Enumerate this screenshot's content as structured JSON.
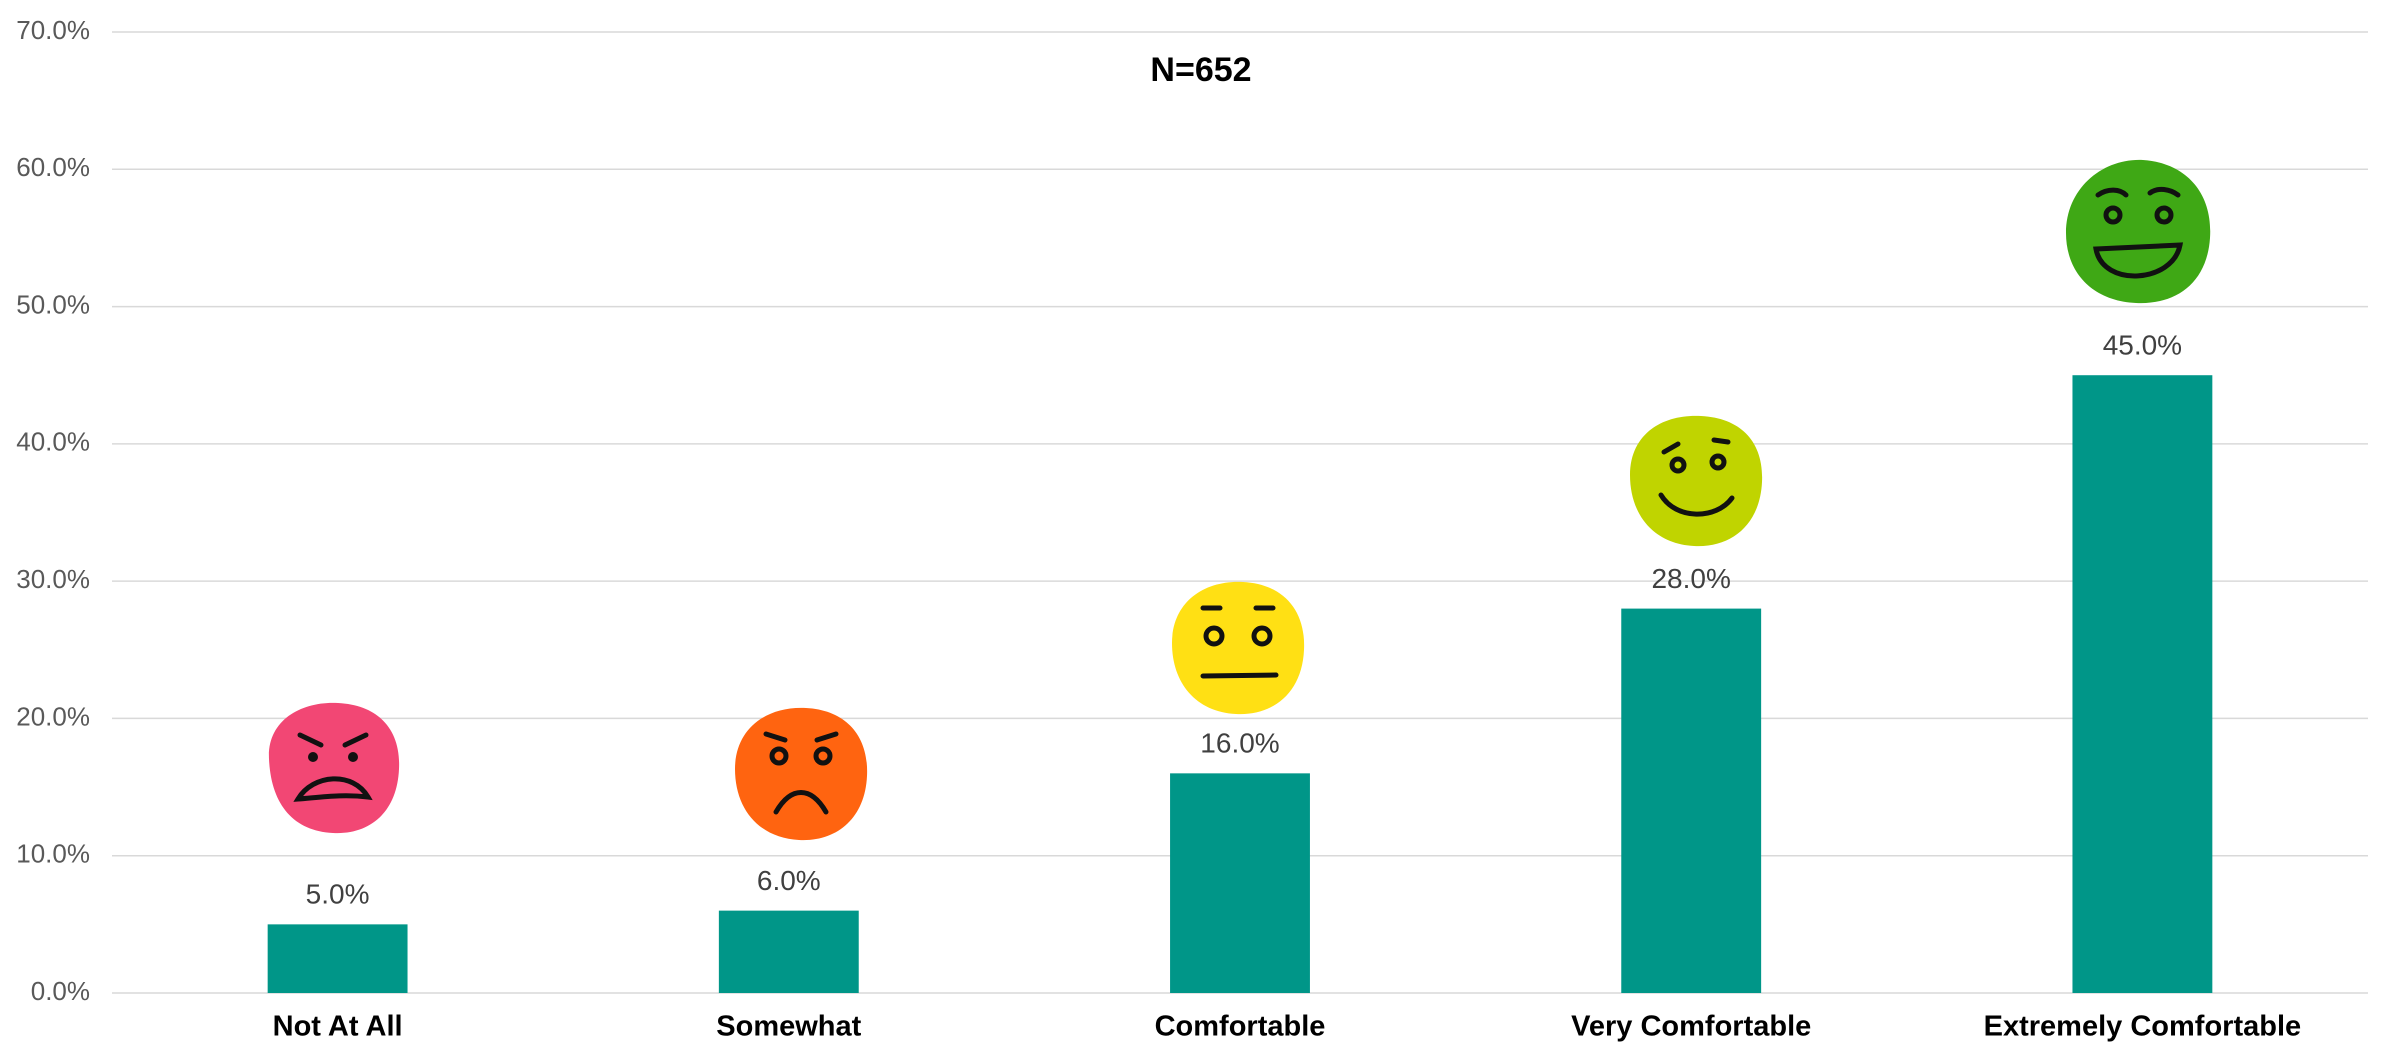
{
  "chart_data": {
    "type": "bar",
    "title": "N=652",
    "categories": [
      "Not At All",
      "Somewhat",
      "Comfortable",
      "Very Comfortable",
      "Extremely Comfortable"
    ],
    "values": [
      5.0,
      6.0,
      16.0,
      28.0,
      45.0
    ],
    "value_labels": [
      "5.0%",
      "6.0%",
      "16.0%",
      "28.0%",
      "45.0%"
    ],
    "color": "#009688",
    "ylim": [
      0,
      70
    ],
    "yticks": [
      {
        "value": 0,
        "label": "0.0%"
      },
      {
        "value": 10,
        "label": "10.0%"
      },
      {
        "value": 20,
        "label": "20.0%"
      },
      {
        "value": 30,
        "label": "30.0%"
      },
      {
        "value": 40,
        "label": "40.0%"
      },
      {
        "value": 50,
        "label": "50.0%"
      },
      {
        "value": 60,
        "label": "60.0%"
      },
      {
        "value": 70,
        "label": "70.0%"
      }
    ],
    "grid": true
  }
}
